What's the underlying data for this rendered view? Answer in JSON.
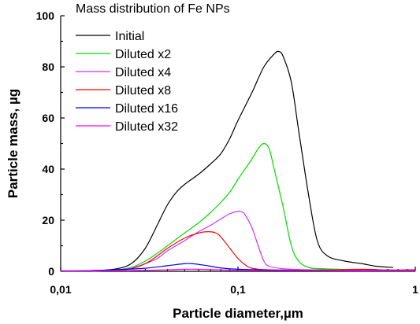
{
  "chart_data": {
    "type": "line",
    "x_scale": "log",
    "xlabel": "Particle diameter,µm",
    "ylabel": "Particle mass, µg",
    "xlim": [
      0.01,
      1
    ],
    "ylim": [
      0,
      100
    ],
    "x_ticks": [
      0.01,
      0.1,
      1
    ],
    "x_tick_labels": [
      "0,01",
      "0,1",
      "1"
    ],
    "y_ticks": [
      0,
      20,
      40,
      60,
      80,
      100
    ],
    "y_tick_labels": [
      "0",
      "20",
      "40",
      "60",
      "80",
      "100"
    ],
    "grid": false,
    "legend": {
      "title": "Mass distribution of Fe NPs",
      "placement": "top-center"
    },
    "series": [
      {
        "name": "Initial",
        "color": "#000000",
        "points": [
          [
            0.015,
            0.3
          ],
          [
            0.02,
            0.8
          ],
          [
            0.025,
            3
          ],
          [
            0.03,
            9
          ],
          [
            0.035,
            18
          ],
          [
            0.04,
            26
          ],
          [
            0.045,
            31
          ],
          [
            0.05,
            34
          ],
          [
            0.06,
            38
          ],
          [
            0.07,
            42
          ],
          [
            0.08,
            46
          ],
          [
            0.09,
            52
          ],
          [
            0.1,
            59
          ],
          [
            0.12,
            70
          ],
          [
            0.14,
            80
          ],
          [
            0.16,
            85
          ],
          [
            0.17,
            86
          ],
          [
            0.18,
            84
          ],
          [
            0.2,
            74
          ],
          [
            0.22,
            55
          ],
          [
            0.25,
            30
          ],
          [
            0.28,
            12
          ],
          [
            0.32,
            6
          ],
          [
            0.4,
            4
          ],
          [
            0.5,
            3
          ],
          [
            0.6,
            2
          ],
          [
            0.75,
            1.5
          ]
        ]
      },
      {
        "name": "Diluted x2",
        "color": "#00dd00",
        "points": [
          [
            0.015,
            0.2
          ],
          [
            0.02,
            0.5
          ],
          [
            0.025,
            1.5
          ],
          [
            0.03,
            4
          ],
          [
            0.035,
            7
          ],
          [
            0.04,
            10
          ],
          [
            0.05,
            15
          ],
          [
            0.06,
            19
          ],
          [
            0.07,
            23
          ],
          [
            0.08,
            27
          ],
          [
            0.09,
            31
          ],
          [
            0.1,
            36
          ],
          [
            0.12,
            44
          ],
          [
            0.13,
            48
          ],
          [
            0.14,
            50
          ],
          [
            0.15,
            48
          ],
          [
            0.16,
            40
          ],
          [
            0.18,
            25
          ],
          [
            0.2,
            10
          ],
          [
            0.22,
            4
          ],
          [
            0.25,
            1.5
          ],
          [
            0.3,
            1
          ],
          [
            0.5,
            0.6
          ],
          [
            0.75,
            0.5
          ]
        ]
      },
      {
        "name": "Diluted x4",
        "color": "#cc33ff",
        "points": [
          [
            0.015,
            0.1
          ],
          [
            0.02,
            0.4
          ],
          [
            0.025,
            1.2
          ],
          [
            0.03,
            3
          ],
          [
            0.035,
            5
          ],
          [
            0.04,
            8
          ],
          [
            0.05,
            12
          ],
          [
            0.06,
            15.5
          ],
          [
            0.07,
            18
          ],
          [
            0.08,
            20.5
          ],
          [
            0.09,
            22.5
          ],
          [
            0.1,
            23.5
          ],
          [
            0.105,
            23.3
          ],
          [
            0.11,
            22
          ],
          [
            0.12,
            17
          ],
          [
            0.13,
            10
          ],
          [
            0.14,
            4
          ],
          [
            0.15,
            2
          ],
          [
            0.18,
            1
          ],
          [
            0.25,
            0.6
          ],
          [
            0.5,
            0.5
          ],
          [
            1,
            0.4
          ]
        ]
      },
      {
        "name": "Diluted x8",
        "color": "#ff0000",
        "points": [
          [
            0.015,
            0.1
          ],
          [
            0.02,
            0.3
          ],
          [
            0.025,
            1
          ],
          [
            0.03,
            3
          ],
          [
            0.035,
            6
          ],
          [
            0.04,
            9
          ],
          [
            0.05,
            13
          ],
          [
            0.06,
            15
          ],
          [
            0.068,
            15.5
          ],
          [
            0.075,
            15
          ],
          [
            0.08,
            13.5
          ],
          [
            0.09,
            9
          ],
          [
            0.1,
            5
          ],
          [
            0.11,
            2.5
          ],
          [
            0.12,
            1.2
          ],
          [
            0.15,
            0.6
          ],
          [
            0.3,
            0.5
          ],
          [
            0.5,
            0.8
          ],
          [
            0.7,
            0.5
          ],
          [
            1,
            0.6
          ]
        ]
      },
      {
        "name": "Diluted x16",
        "color": "#0000ff",
        "points": [
          [
            0.01,
            0.2
          ],
          [
            0.015,
            0.3
          ],
          [
            0.02,
            0.6
          ],
          [
            0.03,
            1.2
          ],
          [
            0.04,
            2.2
          ],
          [
            0.05,
            3
          ],
          [
            0.055,
            3
          ],
          [
            0.06,
            2.7
          ],
          [
            0.07,
            2
          ],
          [
            0.08,
            1.3
          ],
          [
            0.1,
            0.8
          ],
          [
            0.15,
            0.5
          ],
          [
            0.3,
            0.3
          ],
          [
            0.6,
            0.3
          ],
          [
            1,
            0.3
          ]
        ]
      },
      {
        "name": "Diluted x32",
        "color": "#ff00ff",
        "points": [
          [
            0.01,
            0.1
          ],
          [
            0.02,
            0.2
          ],
          [
            0.03,
            0.4
          ],
          [
            0.04,
            0.6
          ],
          [
            0.05,
            0.8
          ],
          [
            0.06,
            0.8
          ],
          [
            0.08,
            0.6
          ],
          [
            0.1,
            0.4
          ],
          [
            0.2,
            0.3
          ],
          [
            0.5,
            0.2
          ],
          [
            1,
            0.2
          ]
        ]
      }
    ]
  }
}
